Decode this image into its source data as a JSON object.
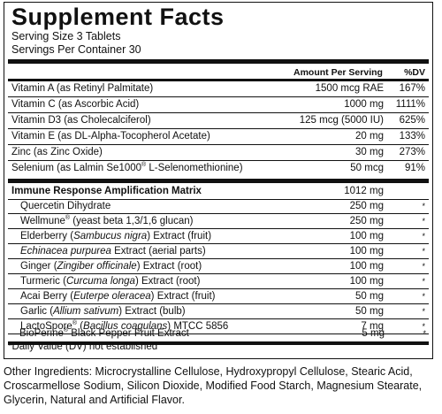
{
  "panel": {
    "title": "Supplement Facts",
    "serving_size": "Serving Size 3 Tablets",
    "servings_per_container": "Servings Per Container 30",
    "col_amount": "Amount Per Serving",
    "col_dv": "%DV"
  },
  "nutrients": [
    {
      "name": "Vitamin A (as Retinyl Palmitate)",
      "amount": "1500 mcg RAE",
      "dv": "167%"
    },
    {
      "name": "Vitamin C (as Ascorbic Acid)",
      "amount": "1000 mg",
      "dv": "1111%"
    },
    {
      "name": "Vitamin D3 (as Cholecalciferol)",
      "amount": "125 mcg (5000 IU)",
      "dv": "625%"
    },
    {
      "name": "Vitamin E (as DL-Alpha-Tocopherol Acetate)",
      "amount": "20 mg",
      "dv": "133%"
    },
    {
      "name": "Zinc (as Zinc Oxide)",
      "amount": "30 mg",
      "dv": "273%"
    },
    {
      "name_pre": "Selenium (as Lalmin Se1000",
      "name_post": " L-Selenomethionine)",
      "amount": "50 mcg",
      "dv": "91%"
    }
  ],
  "blend": {
    "name": "Immune Response Amplification Matrix",
    "amount": "1012 mg",
    "dv_marker": "*",
    "items": [
      {
        "pre": "Quercetin Dihydrate",
        "italic": "",
        "post": "",
        "amount": "250 mg"
      },
      {
        "pre": "Wellmune",
        "sup": "®",
        "italic": "",
        "post": " (yeast beta 1,3/1,6 glucan)",
        "amount": "250 mg"
      },
      {
        "pre": "Elderberry (",
        "italic": "Sambucus nigra",
        "post": ") Extract (fruit)",
        "amount": "100 mg"
      },
      {
        "pre": "",
        "italic": "Echinacea purpurea",
        "post": " Extract (aerial parts)",
        "amount": "100 mg"
      },
      {
        "pre": "Ginger (",
        "italic": "Zingiber officinale",
        "post": ") Extract (root)",
        "amount": "100 mg"
      },
      {
        "pre": "Turmeric (",
        "italic": "Curcuma longa",
        "post": ") Extract (root)",
        "amount": "100 mg"
      },
      {
        "pre": "Acai Berry (",
        "italic": "Euterpe oleracea",
        "post": ") Extract (fruit)",
        "amount": "50 mg"
      },
      {
        "pre": "Garlic (",
        "italic": "Allium sativum",
        "post": ") Extract (bulb)",
        "amount": "50 mg"
      },
      {
        "pre": "LactoSpore",
        "sup": "®",
        "pre2": " (",
        "italic": "Bacillus coagulans",
        "post": ") MTCC 5856",
        "amount": "7 mg"
      },
      {
        "pre": "BioPerine",
        "sup": "®",
        "italic": "",
        "post": " Black Pepper Fruit Extract",
        "amount": "5 mg"
      }
    ]
  },
  "registered_mark": "®",
  "footnote": "*Daily Value (DV) not established",
  "other_ingredients": "Other Ingredients: Microcrystalline Cellulose, Hydroxypropyl Cellulose, Stearic Acid, Croscarmellose Sodium, Silicon Dioxide, Modified Food Starch, Magnesium Stearate, Glycerin, Natural and Artificial Flavor."
}
